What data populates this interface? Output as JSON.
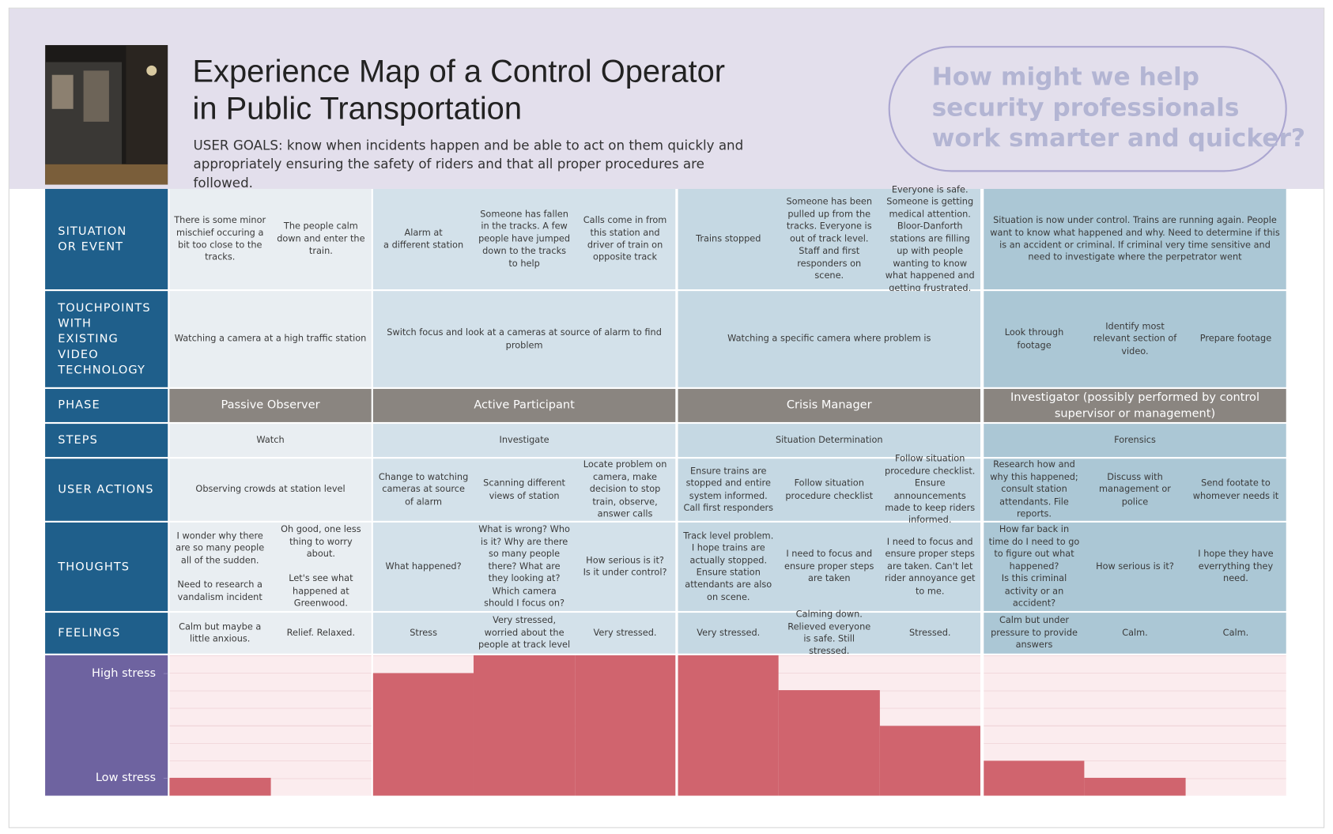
{
  "header": {
    "title_part1": "Experience Map of a ",
    "title_bold": "Control Operator",
    "title_part2": "in Public Transportation",
    "user_goals": "USER GOALS: know when incidents happen and be able to act on them quickly and appropriately ensuring the safety of riders and that all proper procedures are followed.",
    "question": "How might we help\nsecurity professionals\nwork smarter and quicker?"
  },
  "row_labels": {
    "situation": "SITUATION\nOR EVENT",
    "touchpoints": "TOUCHPOINTS\nWITH\nEXISTING\nVIDEO\nTECHNOLOGY",
    "phase": "PHASE",
    "steps": "STEPS",
    "user_actions": "USER ACTIONS",
    "thoughts": "THOUGHTS",
    "feelings": "FEELINGS"
  },
  "phases": [
    {
      "name": "Passive Observer",
      "situation": [
        "There is some minor mischief occuring a bit too close to the tracks.",
        "The people calm down and enter the train."
      ],
      "touchpoints": [
        "Watching a camera at a high traffic station"
      ],
      "steps": "Watch",
      "user_actions": [
        "Observing crowds at station level"
      ],
      "thoughts": [
        "I wonder why there are so many people all of the sudden.\n\nNeed to research a vandalism incident",
        "Oh good, one less thing to worry about.\n\nLet's see what happened at Greenwood."
      ],
      "feelings": [
        "Calm but maybe a little anxious.",
        "Relief. Relaxed."
      ]
    },
    {
      "name": "Active Participant",
      "situation": [
        "Alarm at\na different station",
        "Someone has fallen in the tracks. A few people have jumped down to the tracks to help",
        "Calls come in from this station and driver of train on opposite track"
      ],
      "touchpoints": [
        "Switch focus and look at a cameras at source of alarm to find problem"
      ],
      "steps": "Investigate",
      "user_actions": [
        "Change to watching cameras at source of alarm",
        "Scanning different views of station",
        "Locate problem on camera, make decision to stop train, observe, answer calls"
      ],
      "thoughts": [
        "What happened?",
        "What is wrong? Who is it? Why are there so many people there? What are they looking at? Which camera should I focus on?",
        "How serious is it?\nIs it under control?"
      ],
      "feelings": [
        "Stress",
        "Very stressed, worried about the people at track level",
        "Very stressed."
      ]
    },
    {
      "name": "Crisis Manager",
      "situation": [
        "Trains stopped",
        "Someone has been pulled up from the tracks. Everyone is out of track level. Staff and first responders on scene.",
        "Everyone is safe. Someone is getting medical attention. Bloor-Danforth stations are filling up with people wanting to know what happened and getting frustrated."
      ],
      "touchpoints": [
        "Watching a specific camera where problem is"
      ],
      "steps": "Situation Determination",
      "user_actions": [
        "Ensure trains are stopped and entire system informed. Call first responders",
        "Follow situation procedure checklist",
        "Follow situation procedure checklist. Ensure announcements made to keep riders informed."
      ],
      "thoughts": [
        "Track level problem. I hope trains are actually stopped. Ensure station attendants are also on scene.",
        "I need to focus and ensure proper steps are taken",
        "I need to focus and ensure proper steps are taken. Can't let rider annoyance get to me."
      ],
      "feelings": [
        "Very stressed.",
        "Calming down. Relieved everyone is safe. Still stressed.",
        "Stressed."
      ]
    },
    {
      "name": "Investigator (possibly performed by control supervisor or management)",
      "situation": [
        "Situation is now under control. Trains are running again. People want to know what happened and why. Need to determine if this is an accident or criminal. If criminal very time sensitive and need to investigate where the perpetrator went"
      ],
      "touchpoints": [
        "Look through footage",
        "Identify most relevant section of video.",
        "Prepare footage"
      ],
      "steps": "Forensics",
      "user_actions": [
        "Research how and why this happened; consult station attendants. File reports.",
        "Discuss with management or police",
        "Send footate to whomever needs it"
      ],
      "thoughts": [
        "How far back in time do I need to go to figure out what happened?\nIs this criminal activity or an accident?",
        "How serious is it?",
        "I hope they have everrything they need."
      ],
      "feelings": [
        "Calm but under pressure to provide answers",
        "Calm.",
        "Calm."
      ]
    }
  ],
  "chart_data": {
    "type": "bar",
    "values": [
      1,
      0,
      7,
      8,
      8,
      8,
      6,
      4,
      2,
      1,
      0
    ],
    "color": "#d0646e",
    "ylim": [
      0,
      8
    ],
    "yticks": [
      {
        "value": 7,
        "label": "High stress"
      },
      {
        "value": 1,
        "label": "Low stress"
      }
    ]
  }
}
